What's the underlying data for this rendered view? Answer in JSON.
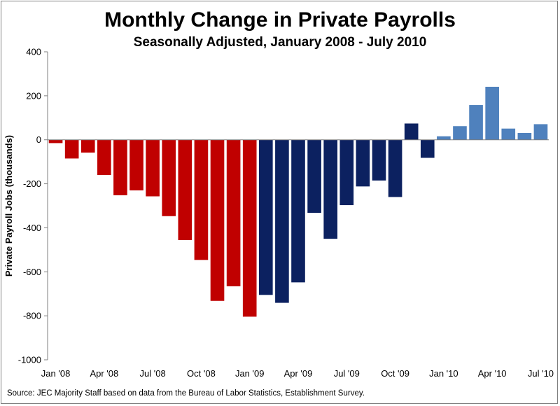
{
  "chart_data": {
    "type": "bar",
    "title": "Monthly Change in Private Payrolls",
    "subtitle": "Seasonally Adjusted, January 2008 - July 2010",
    "ylabel": "Private Payroll Jobs (thousands)",
    "xlabel": "",
    "ylim": [
      -1000,
      400
    ],
    "yticks": [
      400,
      200,
      0,
      -200,
      -400,
      -600,
      -800,
      -1000
    ],
    "grid": false,
    "source": "Source: JEC Majority Staff based on data from the Bureau of Labor Statistics, Establishment Survey.",
    "colors": {
      "red": "#c00000",
      "dark_blue": "#0c2160",
      "light_blue": "#4f81bd"
    },
    "categories": [
      "Jan '08",
      "Feb '08",
      "Mar '08",
      "Apr '08",
      "May '08",
      "Jun '08",
      "Jul '08",
      "Aug '08",
      "Sep '08",
      "Oct '08",
      "Nov '08",
      "Dec '08",
      "Jan '09",
      "Feb '09",
      "Mar '09",
      "Apr '09",
      "May '09",
      "Jun '09",
      "Jul '09",
      "Aug '09",
      "Sep '09",
      "Oct '09",
      "Nov '09",
      "Dec '09",
      "Jan '10",
      "Feb '10",
      "Mar '10",
      "Apr '10",
      "May '10",
      "Jun '10",
      "Jul '10"
    ],
    "values": [
      -15,
      -85,
      -58,
      -160,
      -252,
      -230,
      -257,
      -347,
      -456,
      -546,
      -732,
      -666,
      -804,
      -705,
      -741,
      -648,
      -332,
      -450,
      -297,
      -212,
      -185,
      -260,
      74,
      -82,
      16,
      62,
      158,
      241,
      51,
      31,
      71
    ],
    "bar_color_keys": [
      "red",
      "red",
      "red",
      "red",
      "red",
      "red",
      "red",
      "red",
      "red",
      "red",
      "red",
      "red",
      "red",
      "dark_blue",
      "dark_blue",
      "dark_blue",
      "dark_blue",
      "dark_blue",
      "dark_blue",
      "dark_blue",
      "dark_blue",
      "dark_blue",
      "dark_blue",
      "dark_blue",
      "light_blue",
      "light_blue",
      "light_blue",
      "light_blue",
      "light_blue",
      "light_blue",
      "light_blue"
    ],
    "xtick_labels": [
      "Jan '08",
      "",
      "",
      "Apr '08",
      "",
      "",
      "Jul '08",
      "",
      "",
      "Oct '08",
      "",
      "",
      "Jan '09",
      "",
      "",
      "Apr '09",
      "",
      "",
      "Jul '09",
      "",
      "",
      "Oct '09",
      "",
      "",
      "Jan '10",
      "",
      "",
      "Apr '10",
      "",
      "",
      "Jul '10"
    ]
  }
}
